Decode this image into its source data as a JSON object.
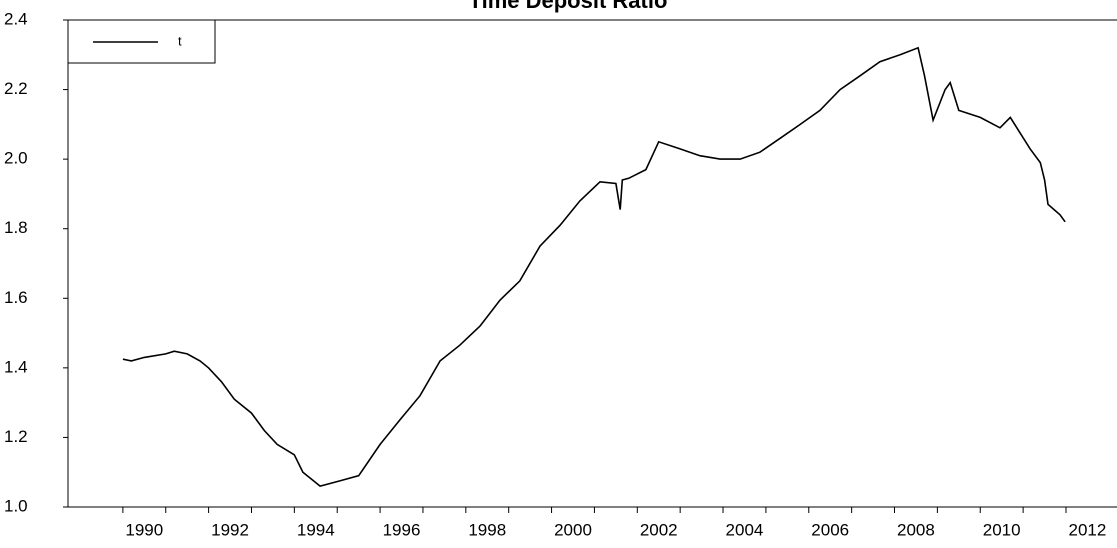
{
  "chart_data": {
    "type": "line",
    "title": "Time Deposit Ratio",
    "series": [
      {
        "name": "t",
        "color": "#000000",
        "x": [
          1990.0,
          1990.2,
          1990.5,
          1991.0,
          1991.2,
          1991.5,
          1991.8,
          1992.0,
          1992.3,
          1992.6,
          1993.0,
          1993.3,
          1993.6,
          1994.0,
          1994.2,
          1994.6,
          1995.06,
          1995.5,
          1996.0,
          1996.46,
          1996.93,
          1997.4,
          1997.86,
          1998.33,
          1998.8,
          1999.26,
          1999.73,
          2000.2,
          2000.66,
          2001.13,
          2001.5,
          2001.6,
          2001.65,
          2001.8,
          2002.2,
          2002.5,
          2002.99,
          2003.46,
          2003.93,
          2004.4,
          2004.86,
          2005.33,
          2005.8,
          2006.26,
          2006.73,
          2007.2,
          2007.66,
          2008.13,
          2008.55,
          2008.7,
          2008.9,
          2009.18,
          2009.3,
          2009.5,
          2010.0,
          2010.46,
          2010.7,
          2011.16,
          2011.4,
          2011.5,
          2011.58,
          2011.86,
          2011.98
        ],
        "values": [
          1.425,
          1.42,
          1.43,
          1.44,
          1.448,
          1.44,
          1.42,
          1.4,
          1.36,
          1.31,
          1.27,
          1.22,
          1.18,
          1.15,
          1.1,
          1.06,
          1.075,
          1.09,
          1.18,
          1.25,
          1.32,
          1.42,
          1.465,
          1.52,
          1.595,
          1.65,
          1.75,
          1.81,
          1.88,
          1.935,
          1.93,
          1.855,
          1.94,
          1.945,
          1.97,
          2.05,
          2.03,
          2.01,
          2.0,
          2.0,
          2.02,
          2.06,
          2.1,
          2.14,
          2.2,
          2.24,
          2.28,
          2.3,
          2.32,
          2.24,
          2.112,
          2.2,
          2.22,
          2.14,
          2.12,
          2.09,
          2.12,
          2.03,
          1.99,
          1.94,
          1.87,
          1.84,
          1.82
        ]
      }
    ],
    "xlim": [
      1988.72,
      2013.19
    ],
    "xticks": [
      1990,
      1992,
      1994,
      1996,
      1998,
      2000,
      2002,
      2004,
      2006,
      2008,
      2010,
      2012
    ],
    "ylim": [
      1.0,
      2.4
    ],
    "yticks": [
      {
        "value": 1.0,
        "label": "1.0"
      },
      1.2,
      1.4,
      1.6,
      1.8,
      {
        "value": 2.0,
        "label": "2.0"
      },
      2.2,
      2.4
    ],
    "legend": "upper left"
  }
}
